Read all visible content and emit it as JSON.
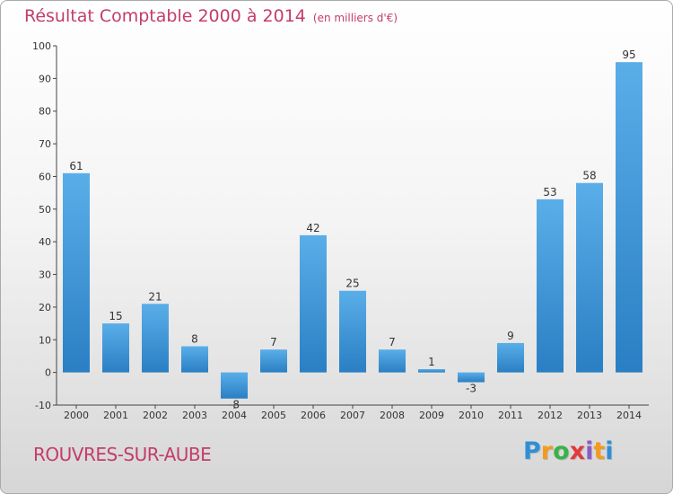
{
  "title": "Résultat Comptable 2000 à 2014",
  "subtitle": "(en milliers d'€)",
  "commune": "ROUVRES-SUR-AUBE",
  "logo": [
    "P",
    "r",
    "o",
    "x",
    "i",
    "t",
    "i"
  ],
  "logo_colors": [
    "#2e8fd8",
    "#f29b1d",
    "#38b24a",
    "#e23a3a",
    "#8a5cc9",
    "#f29b1d",
    "#2e8fd8"
  ],
  "colors": {
    "title": "#c43c6a",
    "bar_top": "#5aaee8",
    "bar_bottom": "#2a7fc4"
  },
  "chart_data": {
    "type": "bar",
    "title": "Résultat Comptable 2000 à 2014",
    "ylabel": "en milliers d'€",
    "categories": [
      "2000",
      "2001",
      "2002",
      "2003",
      "2004",
      "2005",
      "2006",
      "2007",
      "2008",
      "2009",
      "2010",
      "2011",
      "2012",
      "2013",
      "2014"
    ],
    "values": [
      61,
      15,
      21,
      8,
      -8,
      7,
      42,
      25,
      7,
      1,
      -3,
      9,
      53,
      58,
      95
    ],
    "ylim": [
      -10,
      100
    ],
    "yticks": [
      -10,
      0,
      10,
      20,
      30,
      40,
      50,
      60,
      70,
      80,
      90,
      100
    ],
    "grid": false
  }
}
